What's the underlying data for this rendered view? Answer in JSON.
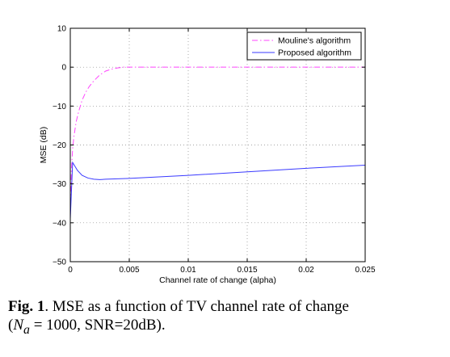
{
  "chart_data": {
    "type": "line",
    "xlabel": "Channel rate of change (alpha)",
    "ylabel": "MSE (dB)",
    "xlim": [
      0,
      0.025
    ],
    "ylim": [
      -50,
      10
    ],
    "xticks": [
      0,
      0.005,
      0.01,
      0.015,
      0.02,
      0.025
    ],
    "xtick_labels": [
      "0",
      "0.005",
      "0.01",
      "0.015",
      "0.02",
      "0.025"
    ],
    "yticks": [
      -50,
      -40,
      -30,
      -20,
      -10,
      0,
      10
    ],
    "ytick_labels": [
      "−50",
      "−40",
      "−30",
      "−20",
      "−10",
      "0",
      "10"
    ],
    "grid": true,
    "legend_position": "top-right",
    "series": [
      {
        "name": "Mouline's algorithm",
        "color": "#ff44ff",
        "dash": "dash-dot",
        "x": [
          0,
          0.0001,
          0.0002,
          0.0003,
          0.0005,
          0.0007,
          0.001,
          0.0013,
          0.0016,
          0.002,
          0.0025,
          0.003,
          0.0035,
          0.004,
          0.0045,
          0.005,
          0.006,
          0.008,
          0.01,
          0.015,
          0.02,
          0.025
        ],
        "y": [
          -38,
          -26,
          -21,
          -18,
          -14,
          -11.5,
          -8.5,
          -6.5,
          -5,
          -3.5,
          -2,
          -1,
          -0.5,
          -0.2,
          0,
          0,
          0,
          0,
          0,
          0,
          0,
          0
        ]
      },
      {
        "name": "Proposed algorithm",
        "color": "#3a3aff",
        "dash": "solid",
        "x": [
          0,
          0.0002,
          0.0004,
          0.0006,
          0.001,
          0.0015,
          0.002,
          0.0025,
          0.003,
          0.005,
          0.01,
          0.015,
          0.02,
          0.025
        ],
        "y": [
          -39,
          -24.5,
          -25.5,
          -26.5,
          -27.8,
          -28.5,
          -28.8,
          -28.9,
          -28.8,
          -28.6,
          -27.8,
          -26.9,
          -26,
          -25.2
        ]
      }
    ]
  },
  "caption": {
    "label": "Fig. 1",
    "text": ".  MSE as a function of TV channel rate of change",
    "line2_open": "(",
    "na_symbol": "N",
    "na_subscript": "a",
    "na_equals": " = 1000, SNR=20dB)."
  }
}
